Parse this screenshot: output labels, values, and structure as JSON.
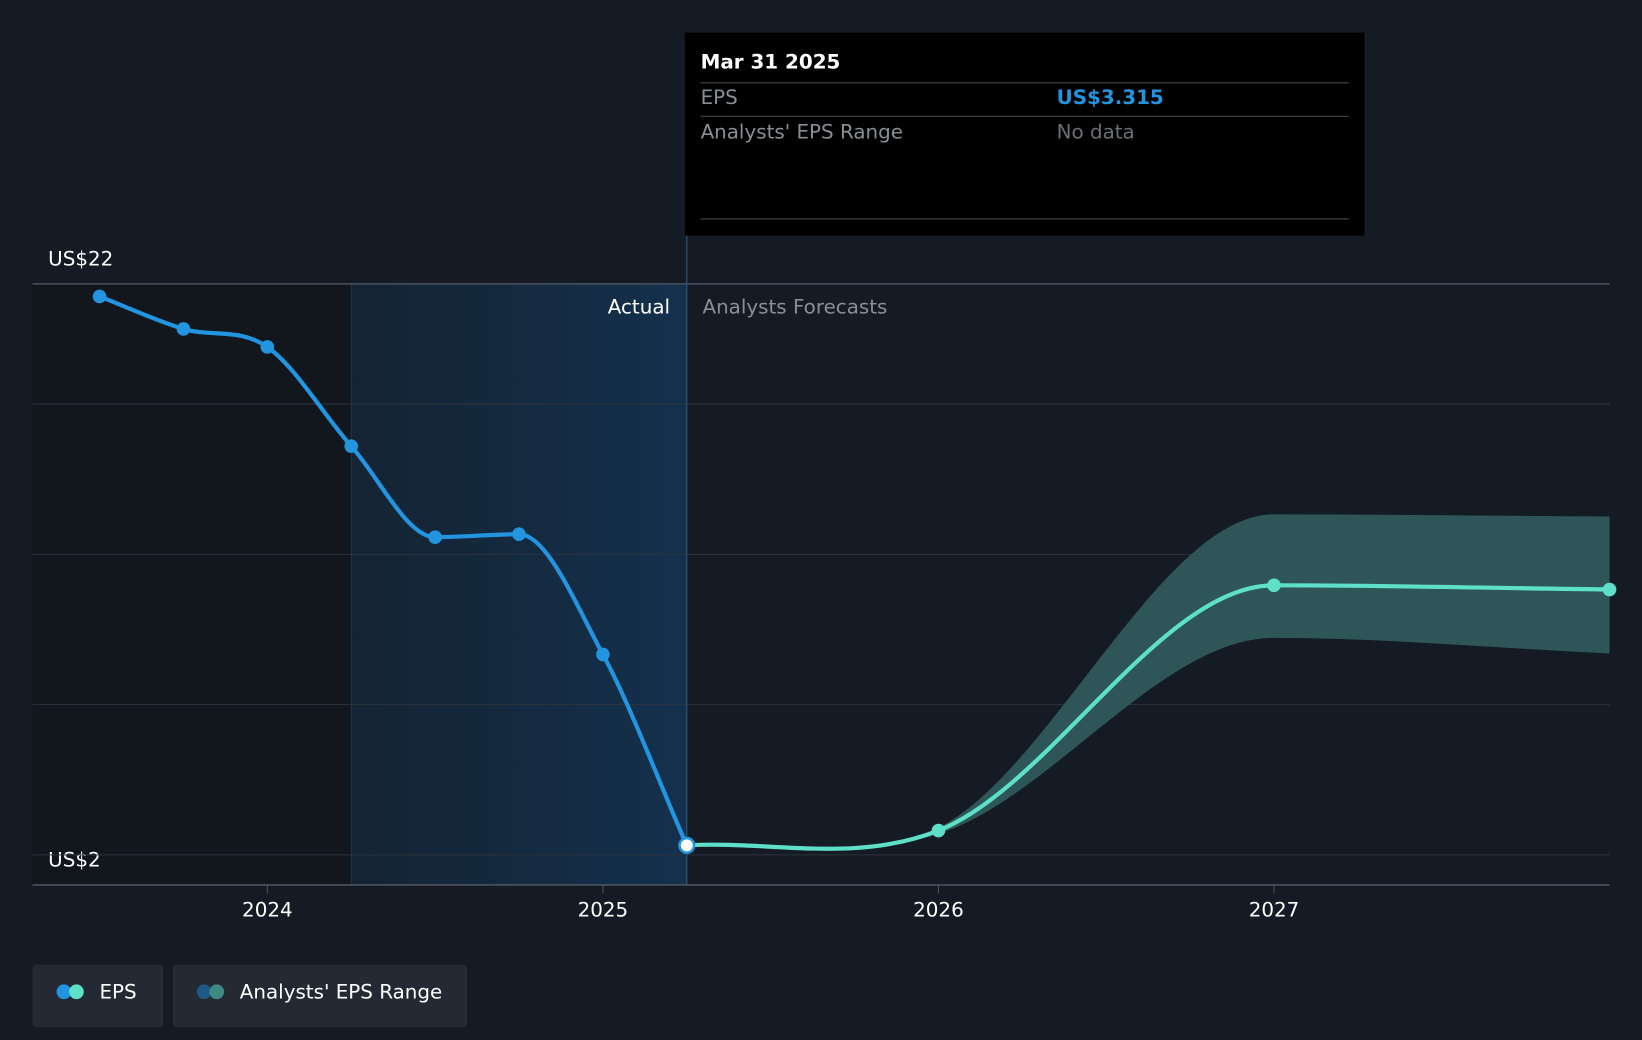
{
  "chart_data": {
    "type": "line",
    "ylim": [
      2,
      22
    ],
    "yticks": [
      {
        "value": 2,
        "label": "US$2"
      },
      {
        "value": 3,
        "label": null
      },
      {
        "value": 8,
        "label": null
      },
      {
        "value": 13,
        "label": null
      },
      {
        "value": 18,
        "label": null
      },
      {
        "value": 22,
        "label": "US$22"
      }
    ],
    "xlim": [
      2023.3,
      2028
    ],
    "xticks": [
      2024,
      2025,
      2026,
      2027
    ],
    "forecast_start": 2025.25,
    "region_labels": [
      "Actual",
      "Analysts Forecasts"
    ],
    "series": [
      {
        "name": "EPS",
        "color": "#2394df",
        "x": [
          2023.5,
          2023.75,
          2024.0,
          2024.25,
          2024.5,
          2024.75,
          2025.0,
          2025.25
        ],
        "values": [
          21.58,
          20.5,
          19.9,
          16.6,
          13.57,
          13.67,
          9.67,
          3.315
        ]
      },
      {
        "color": "#5ee0c8",
        "x": [
          2025.25,
          2026.0,
          2027.0,
          2028.0
        ],
        "values": [
          3.315,
          3.81,
          11.97,
          11.83
        ]
      }
    ],
    "range": {
      "name": "Analysts' EPS Range",
      "color": "#2f5a5c",
      "x": [
        2025.25,
        2026.0,
        2027.0,
        2028.0
      ],
      "low": [
        3.315,
        3.7,
        10.22,
        9.7
      ],
      "high": [
        3.315,
        3.9,
        14.33,
        14.26
      ]
    },
    "tooltip": {
      "date": "Mar 31 2025",
      "rows": [
        [
          "EPS",
          "US$3.315"
        ],
        [
          "Analysts' EPS Range",
          "No data"
        ]
      ]
    }
  }
}
